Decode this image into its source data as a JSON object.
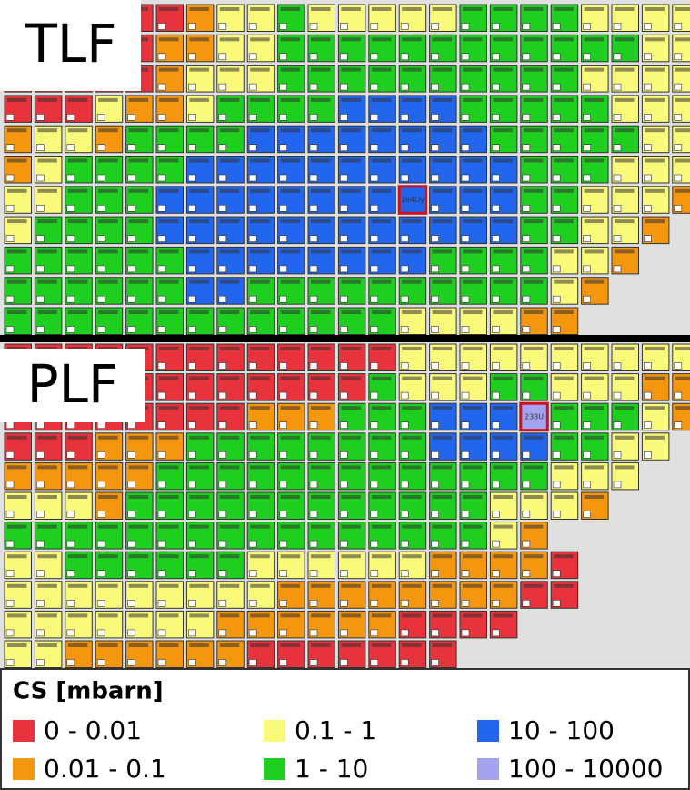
{
  "panels": [
    {
      "label": "TLF",
      "highlight": {
        "row": 6,
        "col": 13,
        "label": "164Dy"
      },
      "rows": [
        "rrrrrroyygyyyyyggggyyyy",
        "rrrrrooyyggggggggggggyy",
        "rrrrroyyyggggggggggyyyy",
        "rrryooyggggbbbbgggggyyy",
        "oyyoggggbbbbbbbbgggggyy",
        "oyggggbbbbbbbbbbbgggyyy",
        "yygggbbbbbbbbbbbbggyyyo",
        "yggggbbbbbbbbbbbbggyyo.",
        "ggggggbbbbbbbbggggyyo..",
        "ggggggbbggggggggggyo...",
        "gggggggggggggyyyyoo...."
      ]
    },
    {
      "label": "PLF",
      "highlight": {
        "row": 2,
        "col": 17,
        "label": "238U"
      },
      "rows": [
        "rrrrrrrrrrrrryyyyyyyyyy",
        "rrrrrrrrrrrrgyyyggyyyoo",
        "rrrrrrrrooogggbbbpgggyo",
        "rrroooggggggggbbbbggyy.",
        "ooooogggggggggggggyyy..",
        "yyyoggggggggggggyyyo...",
        "ggggggggggggggggyo.....",
        "yyggggggyyyyyyoooor....",
        "yyyyyyyyyoooooooorr....",
        "yyyyyyyoooooorrrr......",
        "yyoooooorrrrrrr........"
      ]
    }
  ],
  "legend": {
    "title": "CS [mbarn]",
    "classes": [
      {
        "code": "r",
        "label": "0 - 0.01",
        "color": "#e8323c"
      },
      {
        "code": "o",
        "label": "0.01 - 0.1",
        "color": "#f5960f"
      },
      {
        "code": "y",
        "label": "0.1 - 1",
        "color": "#fafa7a"
      },
      {
        "code": "g",
        "label": "1 - 10",
        "color": "#1fcf1f"
      },
      {
        "code": "b",
        "label": "10 - 100",
        "color": "#2266ee"
      },
      {
        "code": "p",
        "label": "100 - 10000",
        "color": "#a3a3f0"
      }
    ]
  }
}
